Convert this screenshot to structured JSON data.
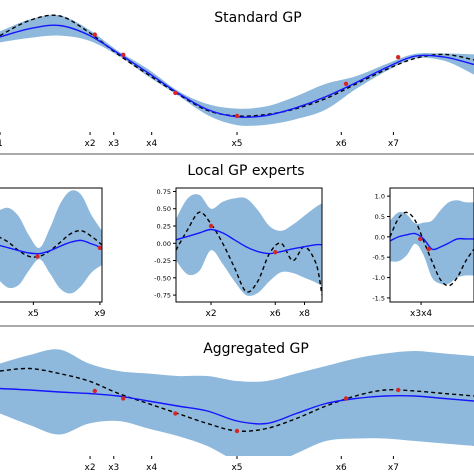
{
  "colors": {
    "band": "#8fb9dc",
    "mean": "#1515ff",
    "truth": "#000000",
    "obs": "#d62728",
    "axis": "#000000",
    "grid": "#555555"
  },
  "standard": {
    "title": "Standard GP",
    "chart_data": {
      "type": "line",
      "xlim": [
        0,
        10
      ],
      "ylim": [
        -1.35,
        1.35
      ],
      "x": [
        0.0,
        0.625,
        1.25,
        1.875,
        2.5,
        3.125,
        3.75,
        4.375,
        5.0,
        5.625,
        6.25,
        6.875,
        7.5,
        8.125,
        8.75,
        9.375,
        10.0
      ],
      "series": [
        {
          "role": "mean",
          "y": [
            0.72,
            0.9,
            0.97,
            0.76,
            0.36,
            -0.06,
            -0.5,
            -0.86,
            -1.02,
            -0.99,
            -0.82,
            -0.58,
            -0.28,
            0.04,
            0.3,
            0.28,
            0.12
          ]
        },
        {
          "role": "truth",
          "y": [
            0.75,
            1.08,
            1.18,
            0.82,
            0.33,
            -0.1,
            -0.52,
            -0.88,
            -1.0,
            -0.97,
            -0.84,
            -0.62,
            -0.31,
            0.0,
            0.25,
            0.34,
            0.22
          ]
        },
        {
          "role": "band",
          "half_width": [
            0.12,
            0.2,
            0.22,
            0.12,
            0.05,
            0.08,
            0.05,
            0.12,
            0.18,
            0.2,
            0.25,
            0.28,
            0.14,
            0.08,
            0.05,
            0.08,
            0.22
          ]
        }
      ],
      "points": {
        "x": [
          2.0,
          2.6,
          3.7,
          5.0,
          7.3,
          8.4
        ],
        "y": [
          0.77,
          0.33,
          -0.5,
          -1.0,
          -0.3,
          0.28
        ]
      },
      "xticks": [
        {
          "v": 0.0,
          "label": "1"
        },
        {
          "v": 1.9,
          "label": "x2"
        },
        {
          "v": 2.4,
          "label": "x3"
        },
        {
          "v": 3.2,
          "label": "x4"
        },
        {
          "v": 5.0,
          "label": "x5"
        },
        {
          "v": 7.2,
          "label": "x6"
        },
        {
          "v": 8.3,
          "label": "x7"
        }
      ]
    }
  },
  "local": {
    "title": "Local GP experts",
    "panels": [
      {
        "chart_data": {
          "type": "line",
          "xlim": [
            0,
            10
          ],
          "ylim": [
            -1.0,
            1.0
          ],
          "x": [
            0.0,
            1.0,
            2.0,
            3.0,
            4.0,
            5.0,
            6.0,
            7.0,
            8.0,
            9.0,
            10.0
          ],
          "series": [
            {
              "role": "mean",
              "y": [
                0.0,
                -0.05,
                -0.1,
                -0.14,
                -0.15,
                -0.1,
                -0.02,
                0.05,
                0.08,
                0.02,
                -0.05
              ]
            },
            {
              "role": "truth",
              "y": [
                0.15,
                0.05,
                -0.1,
                -0.2,
                -0.2,
                -0.1,
                0.05,
                0.2,
                0.25,
                0.15,
                0.0
              ]
            },
            {
              "role": "band",
              "half_width": [
                0.6,
                0.7,
                0.6,
                0.3,
                0.1,
                0.4,
                0.75,
                0.9,
                0.8,
                0.5,
                0.3
              ]
            }
          ],
          "points": {
            "x": [
              3.8,
              9.8
            ],
            "y": [
              -0.2,
              -0.05
            ]
          },
          "yticks": [],
          "xticks": [
            {
              "v": 3.4,
              "label": "x5"
            },
            {
              "v": 9.8,
              "label": "x9"
            }
          ]
        }
      },
      {
        "chart_data": {
          "type": "line",
          "xlim": [
            0,
            10
          ],
          "ylim": [
            -0.85,
            0.8
          ],
          "x": [
            0.0,
            0.8,
            1.6,
            2.4,
            3.2,
            4.0,
            4.8,
            5.6,
            6.4,
            7.2,
            8.0,
            8.8,
            9.6,
            10.0
          ],
          "series": [
            {
              "role": "mean",
              "y": [
                0.05,
                0.1,
                0.15,
                0.2,
                0.15,
                0.05,
                -0.05,
                -0.12,
                -0.15,
                -0.12,
                -0.08,
                -0.05,
                -0.02,
                -0.02
              ]
            },
            {
              "role": "truth",
              "y": [
                -0.1,
                0.2,
                0.45,
                0.28,
                0.0,
                -0.35,
                -0.7,
                -0.55,
                -0.15,
                0.0,
                -0.25,
                -0.05,
                -0.3,
                -0.75
              ]
            },
            {
              "role": "band",
              "half_width": [
                0.3,
                0.55,
                0.55,
                0.3,
                0.45,
                0.6,
                0.7,
                0.6,
                0.4,
                0.3,
                0.35,
                0.45,
                0.55,
                0.6
              ]
            }
          ],
          "points": {
            "x": [
              2.4,
              6.8
            ],
            "y": [
              0.25,
              -0.13
            ]
          },
          "yticks": [
            {
              "v": 0.75,
              "label": "0.75"
            },
            {
              "v": 0.5,
              "label": "0.50"
            },
            {
              "v": 0.25,
              "label": "0.25"
            },
            {
              "v": 0.0,
              "label": "0.00"
            },
            {
              "v": -0.25,
              "label": "-0.25"
            },
            {
              "v": -0.5,
              "label": "-0.50"
            },
            {
              "v": -0.75,
              "label": "-0.75"
            }
          ],
          "xticks": [
            {
              "v": 2.4,
              "label": "x2"
            },
            {
              "v": 6.8,
              "label": "x6"
            },
            {
              "v": 8.8,
              "label": "x8"
            }
          ]
        }
      },
      {
        "chart_data": {
          "type": "line",
          "xlim": [
            0,
            10
          ],
          "ylim": [
            -1.6,
            1.2
          ],
          "x": [
            0.0,
            1.0,
            2.0,
            3.0,
            4.0,
            5.0,
            6.0,
            7.0,
            8.0,
            9.0,
            10.0
          ],
          "series": [
            {
              "role": "mean",
              "y": [
                -0.1,
                0.0,
                0.05,
                0.08,
                -0.05,
                -0.3,
                -0.25,
                -0.15,
                -0.05,
                -0.05,
                -0.05
              ]
            },
            {
              "role": "truth",
              "y": [
                0.0,
                0.45,
                0.6,
                0.4,
                -0.1,
                -0.6,
                -1.05,
                -1.2,
                -1.0,
                -0.6,
                -0.3
              ]
            },
            {
              "role": "band",
              "half_width": [
                0.5,
                0.6,
                0.5,
                0.25,
                0.4,
                0.7,
                0.9,
                1.0,
                0.95,
                0.9,
                0.9
              ]
            }
          ],
          "points": {
            "x": [
              3.6,
              4.6
            ],
            "y": [
              -0.05,
              -0.3
            ]
          },
          "yticks": [
            {
              "v": 1.0,
              "label": "1.0"
            },
            {
              "v": 0.5,
              "label": "0.5"
            },
            {
              "v": 0.0,
              "label": "0.0"
            },
            {
              "v": -0.5,
              "label": "-0.5"
            },
            {
              "v": -1.0,
              "label": "-1.0"
            },
            {
              "v": -1.5,
              "label": "-1.5"
            }
          ],
          "xticks": [
            {
              "v": 3.7,
              "label": "x3x4"
            }
          ]
        }
      }
    ]
  },
  "aggregated": {
    "title": "Aggregated GP",
    "chart_data": {
      "type": "line",
      "xlim": [
        0,
        10
      ],
      "ylim": [
        -1.2,
        1.2
      ],
      "x": [
        0.0,
        0.625,
        1.25,
        1.875,
        2.5,
        3.125,
        3.75,
        4.375,
        5.0,
        5.625,
        6.25,
        6.875,
        7.5,
        8.125,
        8.75,
        9.375,
        10.0
      ],
      "series": [
        {
          "role": "mean",
          "y": [
            0.15,
            0.12,
            0.08,
            0.05,
            0.0,
            -0.1,
            -0.2,
            -0.3,
            -0.5,
            -0.55,
            -0.35,
            -0.15,
            -0.05,
            0.0,
            0.0,
            -0.05,
            -0.1
          ]
        },
        {
          "role": "truth",
          "y": [
            0.5,
            0.55,
            0.45,
            0.3,
            0.05,
            -0.15,
            -0.35,
            -0.55,
            -0.7,
            -0.65,
            -0.45,
            -0.2,
            0.0,
            0.12,
            0.1,
            0.05,
            0.0
          ]
        },
        {
          "role": "band",
          "half_width": [
            0.5,
            0.7,
            0.85,
            0.6,
            0.5,
            0.55,
            0.6,
            0.7,
            0.8,
            0.85,
            0.8,
            0.75,
            0.8,
            0.85,
            0.9,
            0.9,
            0.9
          ]
        }
      ],
      "points": {
        "x": [
          2.0,
          2.6,
          3.7,
          5.0,
          7.3,
          8.4
        ],
        "y": [
          0.1,
          -0.05,
          -0.35,
          -0.7,
          -0.05,
          0.12
        ]
      },
      "xticks": [
        {
          "v": 1.9,
          "label": "x2"
        },
        {
          "v": 2.4,
          "label": "x3"
        },
        {
          "v": 3.2,
          "label": "x4"
        },
        {
          "v": 5.0,
          "label": "x5"
        },
        {
          "v": 7.2,
          "label": "x6"
        },
        {
          "v": 8.3,
          "label": "x7"
        }
      ]
    }
  }
}
